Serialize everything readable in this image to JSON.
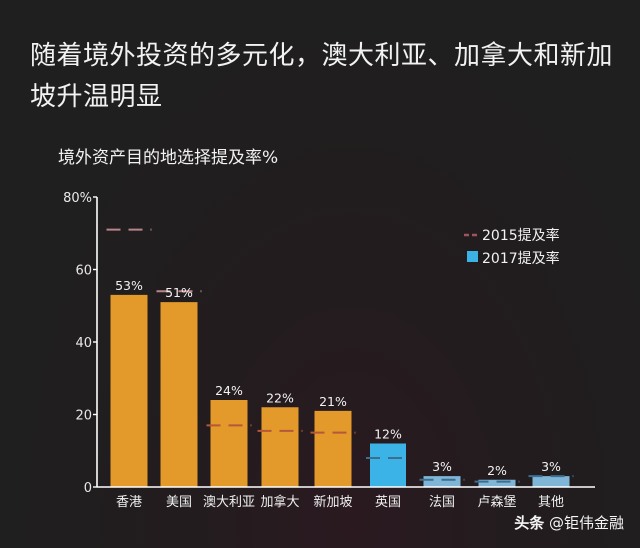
{
  "header": {
    "title": "随着境外投资的多元化，澳大利亚、加拿大和新加坡升温明显",
    "subtitle": "境外资产目的地选择提及率%"
  },
  "watermark": {
    "brand": "头条",
    "handle": "@钜伟金融"
  },
  "colors": {
    "bar_default": "#e39a2a",
    "bar_highlight": "#3bb3e6",
    "bar_small": "#7fb6d8",
    "line_2015": "#a0535a",
    "axis": "#ffffff"
  },
  "chart_data": {
    "type": "bar",
    "title": "境外资产目的地选择提及率%",
    "xlabel": "",
    "ylabel": "",
    "ylim": [
      0,
      80
    ],
    "yticks": [
      "0",
      "20",
      "40",
      "60",
      "80%"
    ],
    "categories": [
      "香港",
      "美国",
      "澳大利亚",
      "加拿大",
      "新加坡",
      "英国",
      "法国",
      "卢森堡",
      "其他"
    ],
    "series": [
      {
        "name": "2017提及率",
        "style": "bar",
        "values": [
          53,
          51,
          24,
          22,
          21,
          12,
          3,
          2,
          3
        ],
        "labels": [
          "53%",
          "51%",
          "24%",
          "22%",
          "21%",
          "12%",
          "3%",
          "2%",
          "3%"
        ]
      },
      {
        "name": "2015提及率",
        "style": "dashed-marker",
        "values": [
          71,
          54,
          17,
          15.5,
          15,
          8,
          2,
          1.5,
          3
        ]
      }
    ],
    "legend": {
      "position": "upper-right",
      "entries": [
        "2015提及率",
        "2017提及率"
      ]
    },
    "grid": false
  }
}
